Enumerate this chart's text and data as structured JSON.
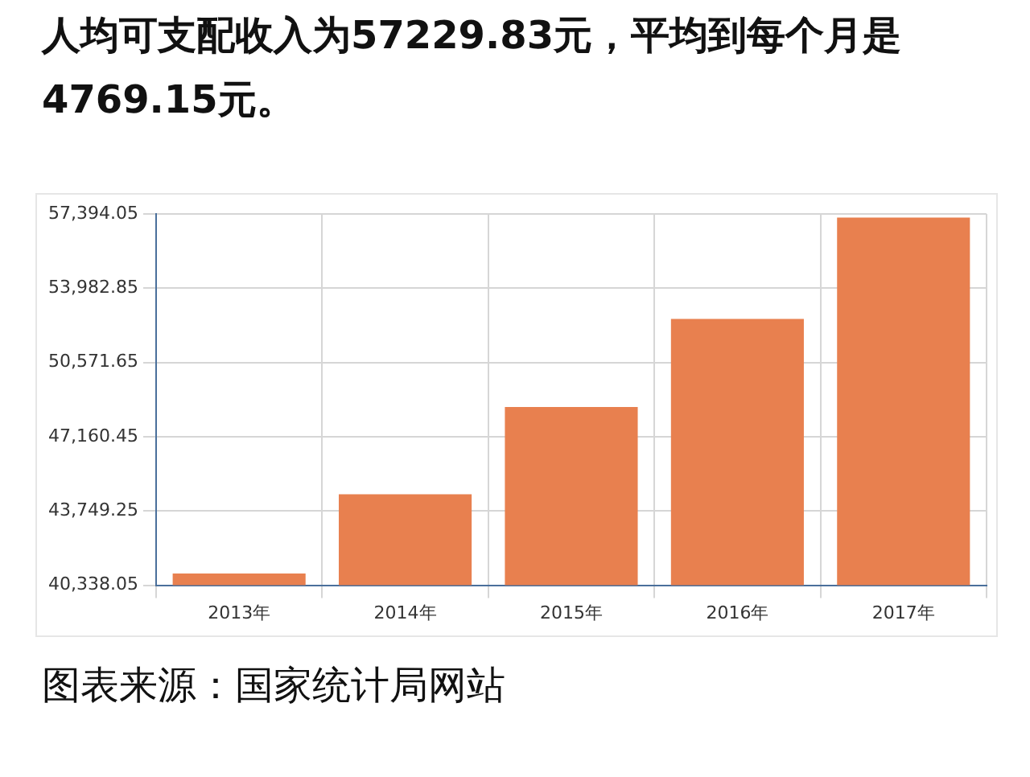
{
  "chart_data": {
    "type": "bar",
    "title": "人均可支配收入为57229.83元，平均到每个月是4769.15元。",
    "categories": [
      "2013年",
      "2014年",
      "2015年",
      "2016年",
      "2017年"
    ],
    "values": [
      40880,
      44520,
      48530,
      52570,
      57230
    ],
    "color": "#e8804f",
    "ylim": [
      40338.05,
      57394.05
    ],
    "yticks": [
      {
        "value": 40338.05,
        "label": "40,338.05"
      },
      {
        "value": 43749.25,
        "label": "43,749.25"
      },
      {
        "value": 47160.45,
        "label": "47,160.45"
      },
      {
        "value": 50571.65,
        "label": "50,571.65"
      },
      {
        "value": 53982.85,
        "label": "53,982.85"
      },
      {
        "value": 57394.05,
        "label": "57,394.05"
      }
    ],
    "grid": true,
    "annotations": [
      "图表来源：国家统计局网站"
    ]
  }
}
